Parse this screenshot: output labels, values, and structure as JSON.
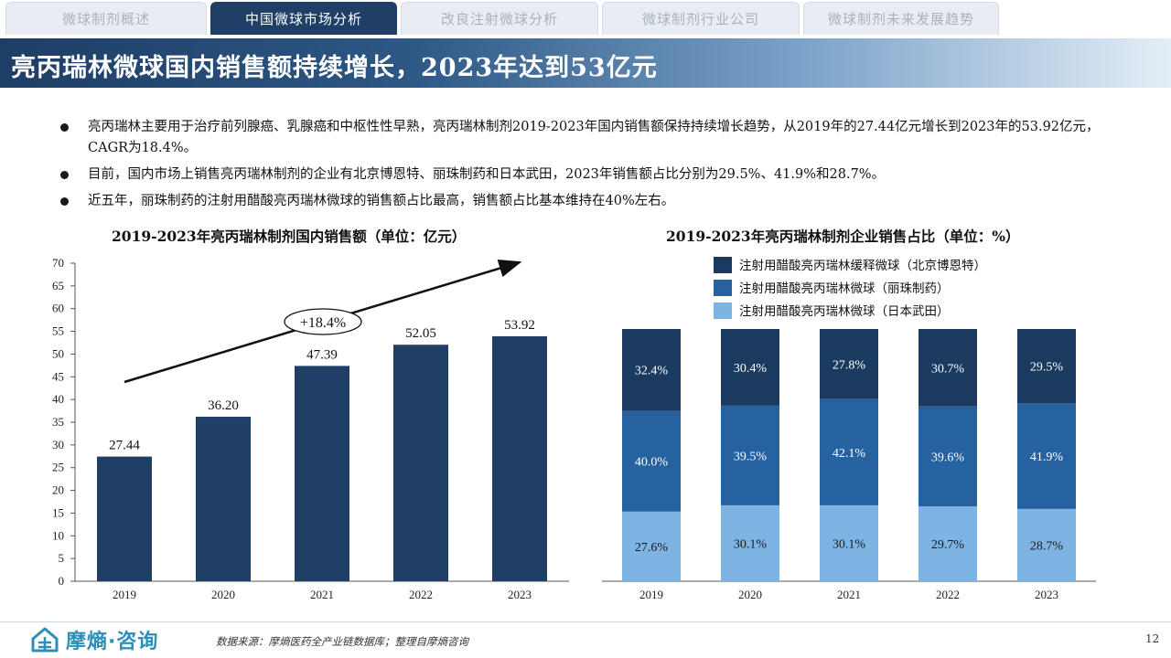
{
  "tabs": [
    {
      "label": "微球制剂概述",
      "active": false
    },
    {
      "label": "中国微球市场分析",
      "active": true
    },
    {
      "label": "改良注射微球分析",
      "active": false
    },
    {
      "label": "微球制剂行业公司",
      "active": false
    },
    {
      "label": "微球制剂未来发展趋势",
      "active": false
    }
  ],
  "title": "亮丙瑞林微球国内销售额持续增长，2023年达到53亿元",
  "bullets": [
    "亮丙瑞林主要用于治疗前列腺癌、乳腺癌和中枢性性早熟，亮丙瑞林制剂2019-2023年国内销售额保持持续增长趋势，从2019年的27.44亿元增长到2023年的53.92亿元，CAGR为18.4%。",
    "目前，国内市场上销售亮丙瑞林制剂的企业有北京博恩特、丽珠制药和日本武田，2023年销售额占比分别为29.5%、41.9%和28.7%。",
    "近五年，丽珠制药的注射用醋酸亮丙瑞林微球的销售额占比最高，销售额占比基本维持在40%左右。"
  ],
  "chart_data": [
    {
      "type": "bar",
      "title": "2019-2023年亮丙瑞林制剂国内销售额（单位：亿元）",
      "categories": [
        "2019",
        "2020",
        "2021",
        "2022",
        "2023"
      ],
      "values": [
        27.44,
        36.2,
        47.39,
        52.05,
        53.92
      ],
      "value_labels": [
        "27.44",
        "36.20",
        "47.39",
        "52.05",
        "53.92"
      ],
      "ylim": [
        0,
        70
      ],
      "yticks": [
        "0",
        "5",
        "10",
        "15",
        "20",
        "25",
        "30",
        "35",
        "40",
        "45",
        "50",
        "55",
        "60",
        "65",
        "70"
      ],
      "annotation": "+18.4%",
      "bar_color": "#1f3f67"
    },
    {
      "type": "bar",
      "stacked": true,
      "title": "2019-2023年亮丙瑞林制剂企业销售占比（单位：%）",
      "categories": [
        "2019",
        "2020",
        "2021",
        "2022",
        "2023"
      ],
      "legend_position": "top-right",
      "series": [
        {
          "name": "注射用醋酸亮丙瑞林微球（日本武田）",
          "values": [
            27.6,
            30.1,
            30.1,
            29.7,
            28.7
          ],
          "labels": [
            "27.6%",
            "30.1%",
            "30.1%",
            "29.7%",
            "28.7%"
          ],
          "color": "#7db4e4"
        },
        {
          "name": "注射用醋酸亮丙瑞林微球（丽珠制药）",
          "values": [
            40.0,
            39.5,
            42.1,
            39.6,
            41.9
          ],
          "labels": [
            "40.0%",
            "39.5%",
            "42.1%",
            "39.6%",
            "41.9%"
          ],
          "color": "#2762a0"
        },
        {
          "name": "注射用醋酸亮丙瑞林缓释微球（北京博恩特）",
          "values": [
            32.4,
            30.4,
            27.8,
            30.7,
            29.5
          ],
          "labels": [
            "32.4%",
            "30.4%",
            "27.8%",
            "30.7%",
            "29.5%"
          ],
          "color": "#1a3b5f"
        }
      ]
    }
  ],
  "footer": {
    "logo_text": "摩熵·咨询",
    "source": "数据来源：摩熵医药全产业链数据库；整理自摩熵咨询",
    "page_number": "12"
  }
}
